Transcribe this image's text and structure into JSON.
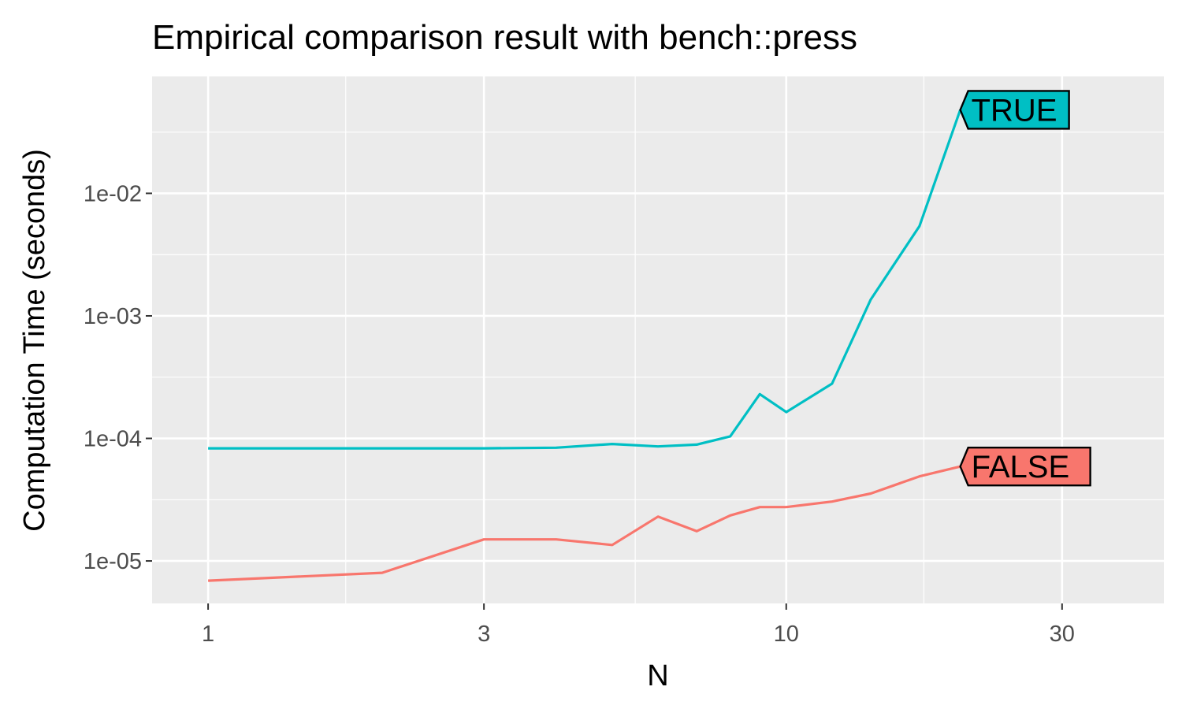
{
  "chart_data": {
    "type": "line",
    "title": "Empirical comparison result with bench::press",
    "xlabel": "N",
    "ylabel": "Computation Time (seconds)",
    "x_scale": "log10",
    "y_scale": "log10",
    "xlim": [
      0.8,
      45
    ],
    "ylim": [
      4.5e-06,
      0.09
    ],
    "x_ticks": [
      {
        "value": 1,
        "label": "1"
      },
      {
        "value": 3,
        "label": "3"
      },
      {
        "value": 10,
        "label": "10"
      },
      {
        "value": 30,
        "label": "30"
      }
    ],
    "x_minor_ticks": [
      1.73,
      5.48,
      17.3
    ],
    "y_ticks": [
      {
        "value": 1e-05,
        "label": "1e-05"
      },
      {
        "value": 0.0001,
        "label": "1e-04"
      },
      {
        "value": 0.001,
        "label": "1e-03"
      },
      {
        "value": 0.01,
        "label": "1e-02"
      }
    ],
    "y_minor_ticks": [
      3.16e-05,
      0.000316,
      0.00316,
      0.0316
    ],
    "grid": true,
    "legend": "none",
    "series": [
      {
        "name": "TRUE",
        "color": "#00bfc4",
        "x": [
          1,
          2,
          3,
          4,
          5,
          6,
          7,
          8,
          9,
          10,
          12,
          14,
          17,
          20
        ],
        "y": [
          8.3e-05,
          8.3e-05,
          8.3e-05,
          8.4e-05,
          9e-05,
          8.6e-05,
          8.9e-05,
          0.000104,
          0.00023,
          0.000164,
          0.00028,
          0.00136,
          0.0054,
          0.048
        ]
      },
      {
        "name": "FALSE",
        "color": "#f8766d",
        "x": [
          1,
          2,
          3,
          4,
          5,
          6,
          7,
          8,
          9,
          10,
          12,
          14,
          17,
          20
        ],
        "y": [
          6.9e-06,
          8e-06,
          1.5e-05,
          1.5e-05,
          1.35e-05,
          2.3e-05,
          1.75e-05,
          2.35e-05,
          2.75e-05,
          2.75e-05,
          3.05e-05,
          3.55e-05,
          4.9e-05,
          5.9e-05
        ]
      }
    ]
  }
}
